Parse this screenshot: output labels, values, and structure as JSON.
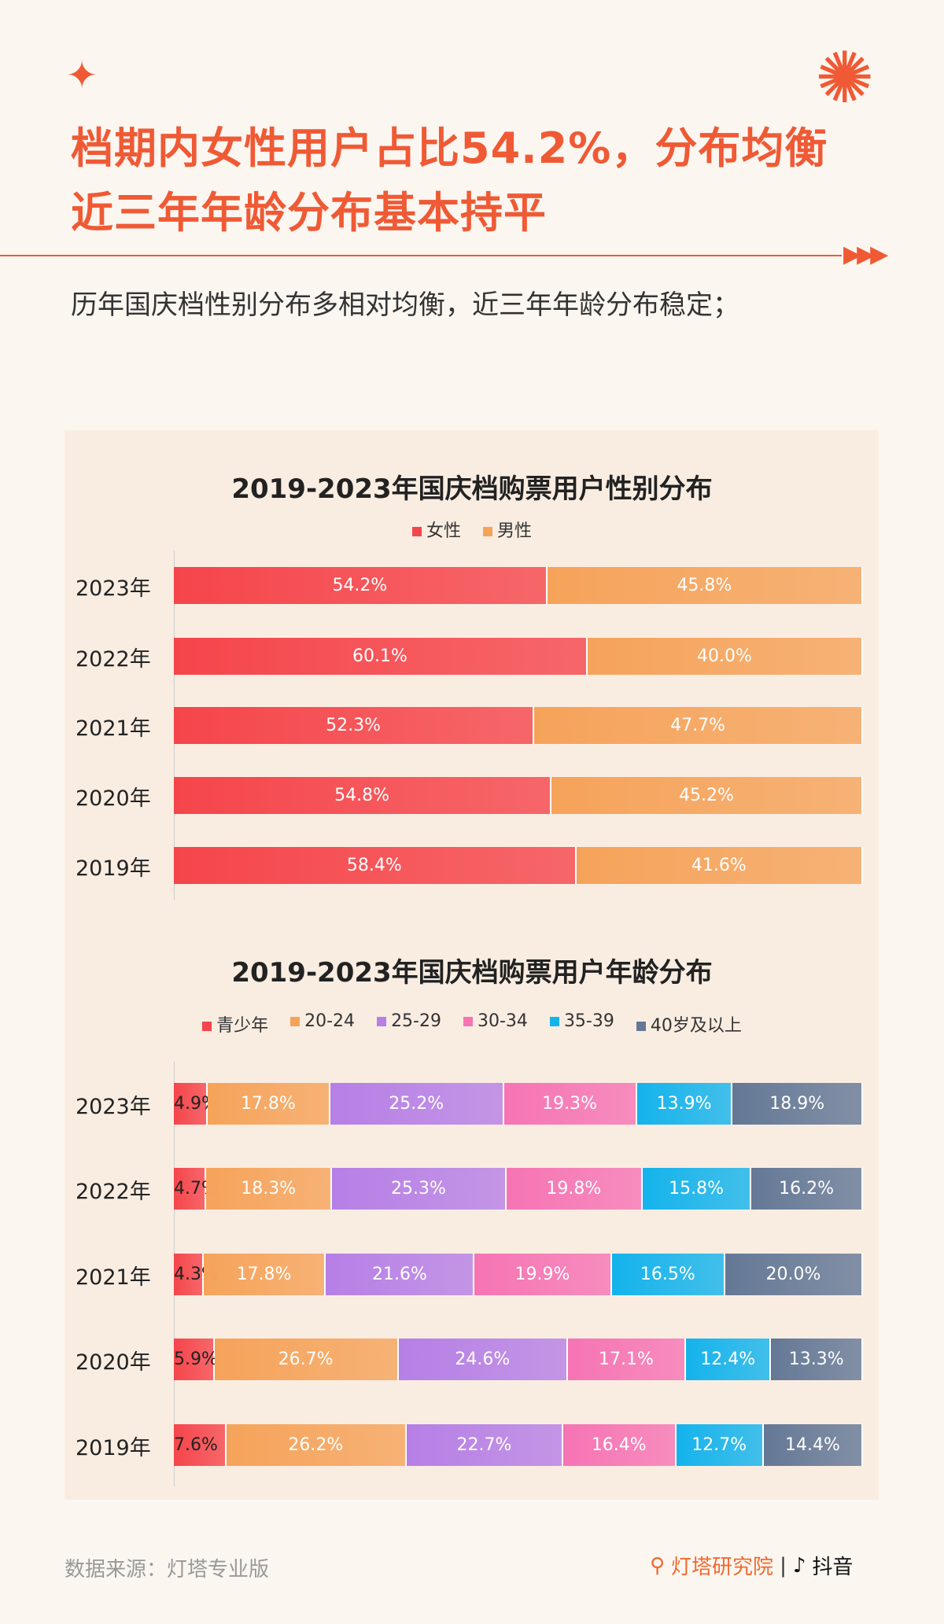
{
  "header": {
    "title_line1": "档期内女性用户占比54.2%，分布均衡",
    "title_line2": "近三年年龄分布基本持平",
    "subtitle": "历年国庆档性别分布多相对均衡，近三年年龄分布稳定；"
  },
  "footer": {
    "source": "数据来源：灯塔专业版",
    "brand": "灯塔研究院",
    "partner": "抖音"
  },
  "chart_data": [
    {
      "type": "bar",
      "stacked": true,
      "orientation": "horizontal",
      "title": "2019-2023年国庆档购票用户性别分布",
      "legend_position": "top",
      "categories": [
        "2023年",
        "2022年",
        "2021年",
        "2020年",
        "2019年"
      ],
      "series": [
        {
          "name": "女性",
          "color": "#f5454b",
          "values": [
            54.2,
            60.1,
            52.3,
            54.8,
            58.4
          ]
        },
        {
          "name": "男性",
          "color": "#f6a35a",
          "values": [
            45.8,
            40.0,
            47.7,
            45.2,
            41.6
          ]
        }
      ]
    },
    {
      "type": "bar",
      "stacked": true,
      "orientation": "horizontal",
      "title": "2019-2023年国庆档购票用户年龄分布",
      "legend_position": "top",
      "categories": [
        "2023年",
        "2022年",
        "2021年",
        "2020年",
        "2019年"
      ],
      "series": [
        {
          "name": "青少年",
          "color": "#f5454b",
          "values": [
            4.9,
            4.7,
            4.3,
            5.9,
            7.6
          ]
        },
        {
          "name": "20-24",
          "color": "#f6a35a",
          "values": [
            17.8,
            18.3,
            17.8,
            26.7,
            26.2
          ]
        },
        {
          "name": "25-29",
          "color": "#b67fe6",
          "values": [
            25.2,
            25.3,
            21.6,
            24.6,
            22.7
          ]
        },
        {
          "name": "30-34",
          "color": "#f674b4",
          "values": [
            19.3,
            19.8,
            19.9,
            17.1,
            16.4
          ]
        },
        {
          "name": "35-39",
          "color": "#14b3ec",
          "values": [
            13.9,
            15.8,
            16.5,
            12.4,
            12.7
          ]
        },
        {
          "name": "40岁及以上",
          "color": "#647896",
          "values": [
            18.9,
            16.2,
            20.0,
            13.3,
            14.4
          ]
        }
      ]
    }
  ]
}
